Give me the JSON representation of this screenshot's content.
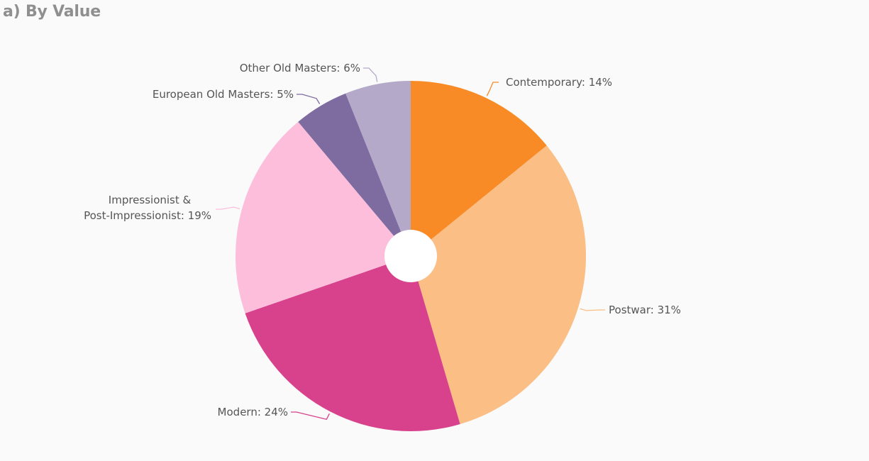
{
  "chart_data": {
    "type": "pie",
    "title": "a) By Value",
    "donut_hole": true,
    "start_angle_deg": 0,
    "direction": "clockwise",
    "slices": [
      {
        "label": "Contemporary: 14%",
        "name": "Contemporary",
        "value": 14,
        "color": "#f88b25"
      },
      {
        "label": "Postwar: 31%",
        "name": "Postwar",
        "value": 31,
        "color": "#fbbe84"
      },
      {
        "label": "Modern: 24%",
        "name": "Modern",
        "value": 24,
        "color": "#d8418c"
      },
      {
        "label": "Impressionist & Post-Impressionist: 19%",
        "label_lines": [
          "Impressionist &",
          "Post-Impressionist: 19%"
        ],
        "name": "Impressionist & Post-Impressionist",
        "value": 19,
        "color": "#fcbedb"
      },
      {
        "label": "European Old Masters: 5%",
        "name": "European Old Masters",
        "value": 5,
        "color": "#7e6ca1"
      },
      {
        "label": "Other Old Masters: 6%",
        "name": "Other Old Masters",
        "value": 6,
        "color": "#b5a9ca"
      }
    ]
  }
}
